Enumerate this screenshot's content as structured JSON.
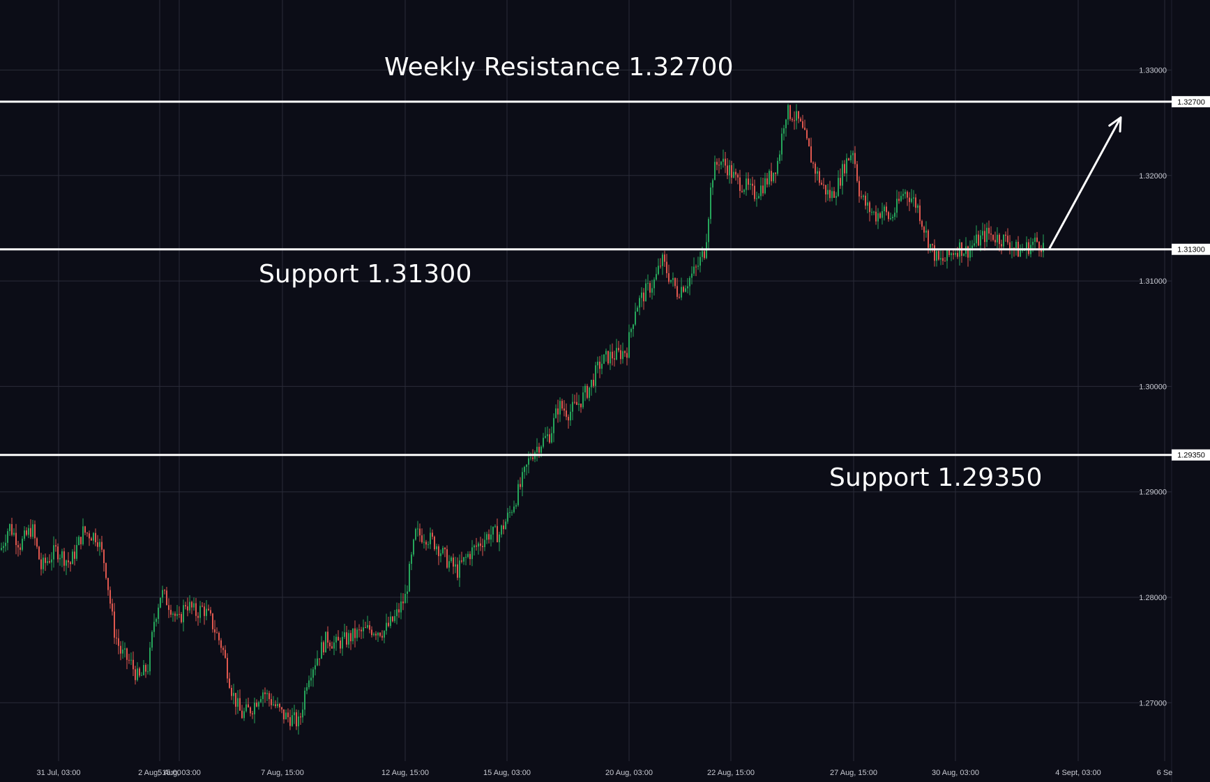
{
  "colors": {
    "background": "#0c0d17",
    "grid": "#2a2c38",
    "up": "#26a65b",
    "down": "#e0584f",
    "level_line": "#ffffff",
    "arrow": "#ffffff"
  },
  "annotations": {
    "resistance_label": "Weekly Resistance 1.32700",
    "support1_label": "Support 1.31300",
    "support2_label": "Support 1.29350"
  },
  "chart_data": {
    "type": "candlestick",
    "title": "",
    "xlabel": "",
    "ylabel": "",
    "ylim": [
      1.266,
      1.3365
    ],
    "grid": true,
    "y_ticks": [
      "1.33000",
      "1.32000",
      "1.31000",
      "1.30000",
      "1.29000",
      "1.28000",
      "1.27000"
    ],
    "x_ticks": [
      "31 Jul, 03:00",
      "2 Aug, 15:00",
      "5 Aug, 03:00",
      "7 Aug, 15:00",
      "12 Aug, 15:00",
      "15 Aug, 03:00",
      "20 Aug, 03:00",
      "22 Aug, 15:00",
      "27 Aug, 15:00",
      "30 Aug, 03:00",
      "4 Sept, 03:00",
      "6 Se"
    ],
    "levels": [
      {
        "label": "1.32700",
        "value": 1.327
      },
      {
        "label": "1.31300",
        "value": 1.313
      },
      {
        "label": "1.29350",
        "value": 1.2935
      }
    ],
    "price_path": [
      [
        0,
        1.2845
      ],
      [
        12,
        1.2868
      ],
      [
        28,
        1.285
      ],
      [
        45,
        1.2866
      ],
      [
        58,
        1.2828
      ],
      [
        80,
        1.2845
      ],
      [
        100,
        1.2832
      ],
      [
        118,
        1.2862
      ],
      [
        138,
        1.2858
      ],
      [
        150,
        1.283
      ],
      [
        162,
        1.277
      ],
      [
        172,
        1.2748
      ],
      [
        186,
        1.2738
      ],
      [
        198,
        1.2722
      ],
      [
        212,
        1.2735
      ],
      [
        220,
        1.2778
      ],
      [
        230,
        1.2805
      ],
      [
        245,
        1.279
      ],
      [
        255,
        1.2775
      ],
      [
        265,
        1.2795
      ],
      [
        280,
        1.2785
      ],
      [
        290,
        1.279
      ],
      [
        300,
        1.278
      ],
      [
        318,
        1.2752
      ],
      [
        332,
        1.271
      ],
      [
        345,
        1.2688
      ],
      [
        360,
        1.2695
      ],
      [
        375,
        1.2712
      ],
      [
        390,
        1.27
      ],
      [
        405,
        1.2688
      ],
      [
        418,
        1.2685
      ],
      [
        428,
        1.268
      ],
      [
        440,
        1.2725
      ],
      [
        455,
        1.2745
      ],
      [
        468,
        1.2762
      ],
      [
        480,
        1.2755
      ],
      [
        495,
        1.276
      ],
      [
        510,
        1.2765
      ],
      [
        530,
        1.277
      ],
      [
        550,
        1.2768
      ],
      [
        565,
        1.278
      ],
      [
        580,
        1.28
      ],
      [
        595,
        1.286
      ],
      [
        610,
        1.2858
      ],
      [
        625,
        1.285
      ],
      [
        640,
        1.2835
      ],
      [
        655,
        1.2825
      ],
      [
        670,
        1.284
      ],
      [
        685,
        1.285
      ],
      [
        700,
        1.286
      ],
      [
        715,
        1.286
      ],
      [
        730,
        1.288
      ],
      [
        745,
        1.2905
      ],
      [
        760,
        1.2935
      ],
      [
        772,
        1.2945
      ],
      [
        788,
        1.2955
      ],
      [
        800,
        1.2982
      ],
      [
        815,
        1.2975
      ],
      [
        830,
        1.2985
      ],
      [
        845,
        1.3
      ],
      [
        858,
        1.302
      ],
      [
        870,
        1.3028
      ],
      [
        885,
        1.303
      ],
      [
        898,
        1.3035
      ],
      [
        910,
        1.3075
      ],
      [
        925,
        1.309
      ],
      [
        938,
        1.31
      ],
      [
        948,
        1.312
      ],
      [
        958,
        1.3105
      ],
      [
        970,
        1.309
      ],
      [
        985,
        1.31
      ],
      [
        998,
        1.3112
      ],
      [
        1010,
        1.313
      ],
      [
        1020,
        1.32
      ],
      [
        1030,
        1.3215
      ],
      [
        1042,
        1.3208
      ],
      [
        1055,
        1.3195
      ],
      [
        1068,
        1.319
      ],
      [
        1080,
        1.3182
      ],
      [
        1092,
        1.319
      ],
      [
        1105,
        1.32
      ],
      [
        1115,
        1.3215
      ],
      [
        1125,
        1.326
      ],
      [
        1135,
        1.3258
      ],
      [
        1145,
        1.325
      ],
      [
        1155,
        1.3232
      ],
      [
        1165,
        1.321
      ],
      [
        1178,
        1.319
      ],
      [
        1190,
        1.318
      ],
      [
        1200,
        1.319
      ],
      [
        1210,
        1.321
      ],
      [
        1222,
        1.3225
      ],
      [
        1232,
        1.3182
      ],
      [
        1242,
        1.317
      ],
      [
        1255,
        1.3162
      ],
      [
        1265,
        1.3168
      ],
      [
        1275,
        1.3158
      ],
      [
        1285,
        1.317
      ],
      [
        1295,
        1.3185
      ],
      [
        1305,
        1.318
      ],
      [
        1315,
        1.317
      ],
      [
        1325,
        1.3148
      ],
      [
        1335,
        1.313
      ],
      [
        1345,
        1.3118
      ],
      [
        1355,
        1.312
      ],
      [
        1365,
        1.3128
      ],
      [
        1375,
        1.3132
      ],
      [
        1385,
        1.3128
      ],
      [
        1395,
        1.3135
      ],
      [
        1405,
        1.314
      ],
      [
        1415,
        1.3145
      ],
      [
        1425,
        1.3142
      ],
      [
        1435,
        1.314
      ],
      [
        1445,
        1.3138
      ],
      [
        1452,
        1.3132
      ],
      [
        1460,
        1.3128
      ],
      [
        1468,
        1.313
      ],
      [
        1478,
        1.3135
      ],
      [
        1488,
        1.3138
      ],
      [
        1496,
        1.3132
      ]
    ],
    "projection_arrow": {
      "from": [
        1505,
        1.3131
      ],
      "to": [
        1607,
        1.3255
      ]
    }
  }
}
